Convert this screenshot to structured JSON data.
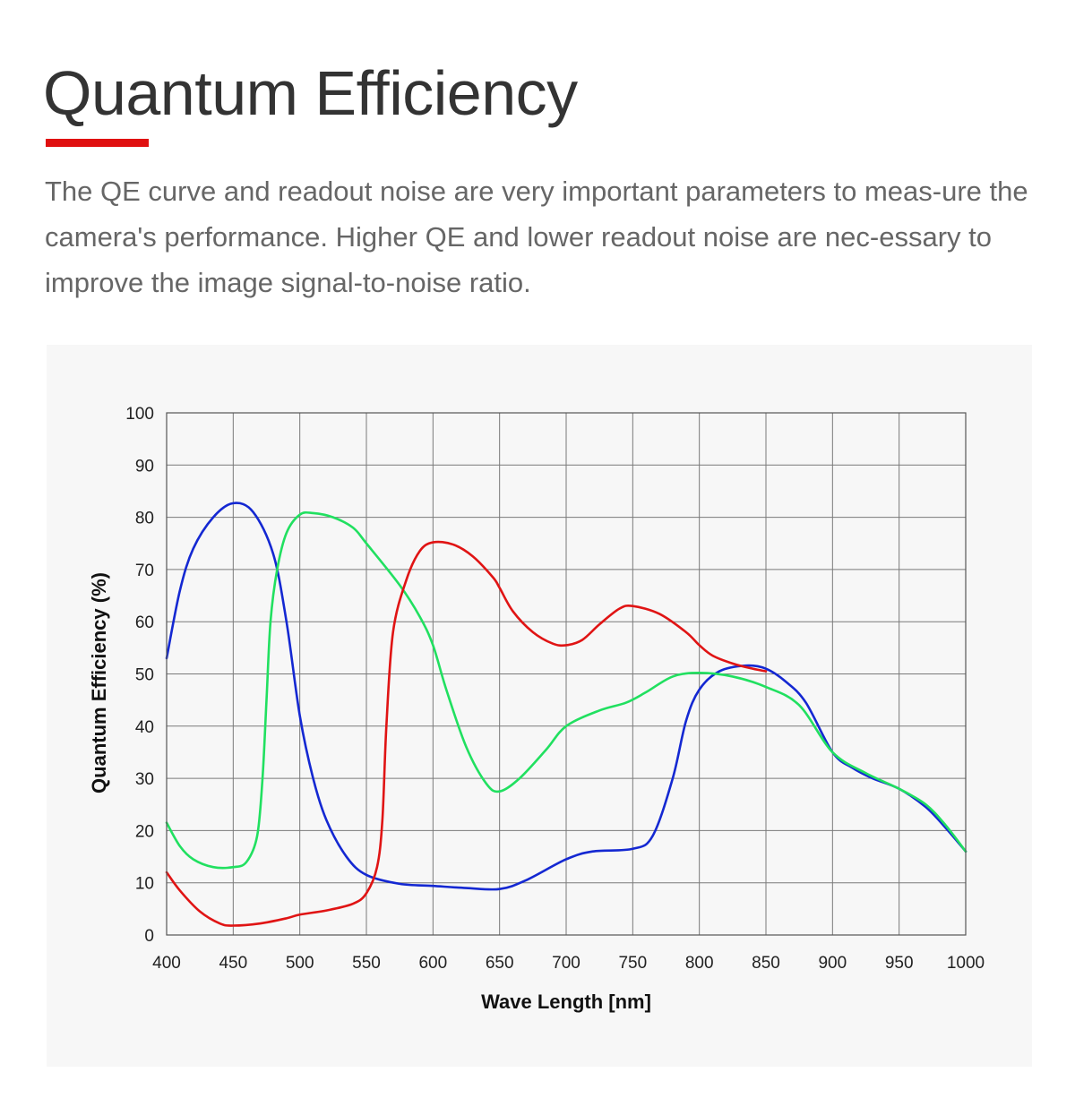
{
  "header": {
    "title": "Quantum Efficiency",
    "accent_color": "#e01010"
  },
  "description": "The QE curve and readout noise are very important parameters to meas-ure the camera's performance. Higher QE and lower readout noise are nec-essary to improve the image signal-to-noise ratio.",
  "chart_data": {
    "type": "line",
    "title": "",
    "xlabel": "Wave Length [nm]",
    "ylabel": "Quantum Efficiency (%)",
    "xlim": [
      400,
      1000
    ],
    "ylim": [
      0,
      100
    ],
    "x_ticks": [
      400,
      450,
      500,
      550,
      600,
      650,
      700,
      750,
      800,
      850,
      900,
      950,
      1000
    ],
    "y_ticks": [
      0,
      10,
      20,
      30,
      40,
      50,
      60,
      70,
      80,
      90,
      100
    ],
    "grid": true,
    "legend": "none",
    "series": [
      {
        "color": "#1428d2",
        "points": [
          [
            400,
            53
          ],
          [
            410,
            66
          ],
          [
            420,
            74
          ],
          [
            435,
            80
          ],
          [
            450,
            82.7
          ],
          [
            465,
            81
          ],
          [
            480,
            73
          ],
          [
            490,
            60
          ],
          [
            500,
            42
          ],
          [
            510,
            30
          ],
          [
            520,
            22
          ],
          [
            535,
            15
          ],
          [
            550,
            11.5
          ],
          [
            575,
            9.8
          ],
          [
            600,
            9.4
          ],
          [
            625,
            9
          ],
          [
            650,
            8.8
          ],
          [
            670,
            10.5
          ],
          [
            700,
            14.5
          ],
          [
            720,
            16
          ],
          [
            750,
            16.5
          ],
          [
            765,
            19
          ],
          [
            780,
            30
          ],
          [
            790,
            41
          ],
          [
            800,
            47
          ],
          [
            815,
            50.5
          ],
          [
            835,
            51.6
          ],
          [
            850,
            51
          ],
          [
            865,
            48.5
          ],
          [
            880,
            44.5
          ],
          [
            900,
            35
          ],
          [
            915,
            32
          ],
          [
            930,
            30
          ],
          [
            950,
            28
          ],
          [
            970,
            24.5
          ],
          [
            985,
            20.5
          ],
          [
            1000,
            16
          ]
        ]
      },
      {
        "color": "#21e060",
        "points": [
          [
            400,
            21.5
          ],
          [
            410,
            17
          ],
          [
            420,
            14.5
          ],
          [
            435,
            13
          ],
          [
            450,
            13
          ],
          [
            460,
            14
          ],
          [
            468,
            19
          ],
          [
            472,
            30
          ],
          [
            475,
            45
          ],
          [
            478,
            60
          ],
          [
            483,
            70
          ],
          [
            490,
            77
          ],
          [
            500,
            80.5
          ],
          [
            510,
            80.8
          ],
          [
            525,
            80
          ],
          [
            540,
            78
          ],
          [
            550,
            75
          ],
          [
            575,
            67
          ],
          [
            590,
            61
          ],
          [
            600,
            55.5
          ],
          [
            610,
            47
          ],
          [
            625,
            36
          ],
          [
            640,
            29
          ],
          [
            650,
            27.5
          ],
          [
            665,
            30
          ],
          [
            685,
            35.5
          ],
          [
            700,
            40
          ],
          [
            725,
            43
          ],
          [
            745,
            44.5
          ],
          [
            760,
            46.5
          ],
          [
            780,
            49.5
          ],
          [
            800,
            50.2
          ],
          [
            825,
            49.5
          ],
          [
            850,
            47.5
          ],
          [
            875,
            44
          ],
          [
            900,
            35
          ],
          [
            925,
            31
          ],
          [
            950,
            28
          ],
          [
            970,
            25
          ],
          [
            985,
            21
          ],
          [
            1000,
            16
          ]
        ]
      },
      {
        "color": "#e01414",
        "points": [
          [
            400,
            12
          ],
          [
            410,
            8.5
          ],
          [
            425,
            4.5
          ],
          [
            440,
            2.2
          ],
          [
            450,
            1.8
          ],
          [
            470,
            2.2
          ],
          [
            490,
            3.2
          ],
          [
            500,
            3.9
          ],
          [
            520,
            4.7
          ],
          [
            540,
            6
          ],
          [
            550,
            8
          ],
          [
            558,
            13
          ],
          [
            562,
            22
          ],
          [
            565,
            40
          ],
          [
            570,
            58
          ],
          [
            580,
            68
          ],
          [
            590,
            73.5
          ],
          [
            600,
            75.2
          ],
          [
            615,
            74.8
          ],
          [
            630,
            72.5
          ],
          [
            645,
            68.5
          ],
          [
            650,
            66.5
          ],
          [
            660,
            62
          ],
          [
            675,
            58
          ],
          [
            690,
            55.8
          ],
          [
            700,
            55.5
          ],
          [
            712,
            56.5
          ],
          [
            725,
            59.5
          ],
          [
            740,
            62.5
          ],
          [
            750,
            63
          ],
          [
            770,
            61.5
          ],
          [
            790,
            58
          ],
          [
            800,
            55.5
          ],
          [
            810,
            53.5
          ],
          [
            825,
            52
          ],
          [
            840,
            51
          ],
          [
            850,
            50.5
          ]
        ]
      }
    ]
  }
}
